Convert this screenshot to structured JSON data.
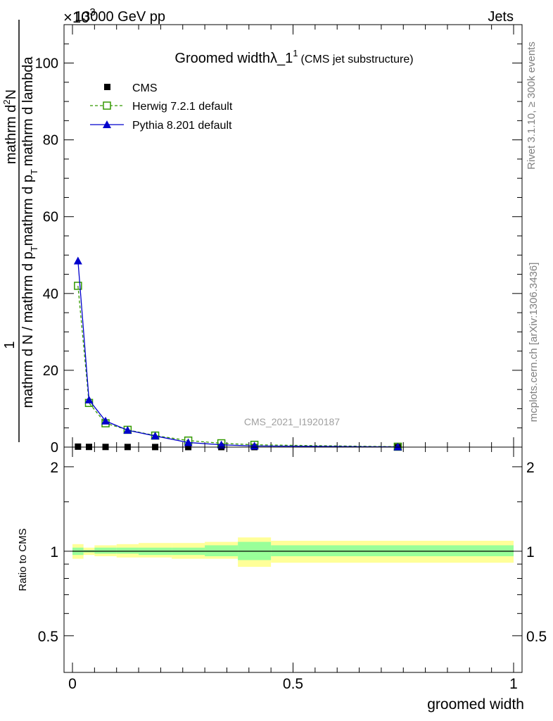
{
  "header": {
    "energy": "13000 GeV pp",
    "process": "Jets",
    "exponent": "×10",
    "exponent_power": "3"
  },
  "side": {
    "rivet": "Rivet 3.1.10, ≥ 300k events",
    "mcplots": "mcplots.cern.ch [arXiv:1306.3436]"
  },
  "watermark": "CMS_2021_I1920187",
  "chart_data": [
    {
      "type": "line",
      "title_main": "Groomed width",
      "title_lambda": "λ_1",
      "title_sup": "1",
      "title_sub": "(CMS jet substructure)",
      "ylabel_top": "1",
      "ylabel_num": "mathrm d",
      "ylabel_num_sup": "2",
      "ylabel_num_end": "N",
      "ylabel_den": "mathrm d N / mathrm d p",
      "ylabel_den_sub": "T",
      "ylabel_den_end": "mathrm d p",
      "ylabel_den_sub2": "T",
      "ylabel_den_tail": "mathrm d lambda",
      "xlim": [
        0,
        1
      ],
      "ylim": [
        0,
        110
      ],
      "y_ticks": [
        0,
        20,
        40,
        60,
        80,
        100
      ],
      "y_tick_labels": [
        "0",
        "20",
        "40",
        "60",
        "80",
        "100"
      ],
      "legend_position": "top-left",
      "series": [
        {
          "name": "CMS",
          "color": "#000000",
          "marker": "square-filled",
          "x": [
            0.0125,
            0.0375,
            0.075,
            0.125,
            0.1875,
            0.2625,
            0.3375,
            0.4125,
            0.7375
          ],
          "y": [
            0.12,
            0.05,
            0.04,
            0.03,
            0.02,
            0.01,
            0.008,
            0.006,
            0.002
          ]
        },
        {
          "name": "Herwig 7.2.1 default",
          "color": "#339900",
          "marker": "square-open",
          "dashed": true,
          "x": [
            0.0125,
            0.0375,
            0.075,
            0.125,
            0.1875,
            0.2625,
            0.3375,
            0.4125,
            0.7375
          ],
          "y": [
            42.0,
            11.5,
            6.2,
            4.5,
            3.0,
            1.7,
            1.0,
            0.6,
            0.1
          ]
        },
        {
          "name": "Pythia 8.201 default",
          "color": "#0000cc",
          "marker": "triangle-filled",
          "dashed": false,
          "x": [
            0.0125,
            0.0375,
            0.075,
            0.125,
            0.1875,
            0.2625,
            0.3375,
            0.4125,
            0.7375
          ],
          "y": [
            48.5,
            12.3,
            6.8,
            4.4,
            2.9,
            1.2,
            0.6,
            0.3,
            0.05
          ]
        }
      ]
    },
    {
      "type": "area",
      "ylabel": "Ratio to CMS",
      "xlabel": "groomed width",
      "xlim": [
        0,
        1
      ],
      "ylim": [
        0.37,
        2.35
      ],
      "x_ticks": [
        0,
        0.5,
        1
      ],
      "x_tick_labels": [
        "0",
        "0.5",
        "1"
      ],
      "y_ticks": [
        0.5,
        1,
        2
      ],
      "y_tick_labels": [
        "0.5",
        "1",
        "2"
      ],
      "bands": {
        "bins": [
          0,
          0.025,
          0.05,
          0.1,
          0.15,
          0.225,
          0.3,
          0.375,
          0.45,
          1.0
        ],
        "stat_color": "#99ff99",
        "total_color": "#ffff99",
        "stat_lo": [
          0.97,
          0.99,
          0.98,
          0.98,
          0.97,
          0.97,
          0.96,
          0.93,
          0.96
        ],
        "stat_hi": [
          1.03,
          1.01,
          1.03,
          1.03,
          1.03,
          1.03,
          1.05,
          1.08,
          1.05
        ],
        "total_lo": [
          0.94,
          0.97,
          0.96,
          0.95,
          0.95,
          0.94,
          0.94,
          0.88,
          0.91
        ],
        "total_hi": [
          1.06,
          1.03,
          1.05,
          1.06,
          1.07,
          1.07,
          1.08,
          1.12,
          1.09
        ]
      }
    }
  ]
}
